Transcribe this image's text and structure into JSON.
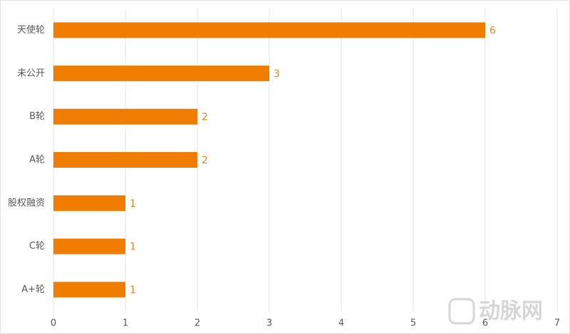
{
  "chart_data": {
    "type": "barh",
    "categories": [
      "天使轮",
      "未公开",
      "B轮",
      "A轮",
      "股权融资",
      "C轮",
      "A+轮"
    ],
    "values": [
      6,
      3,
      2,
      2,
      1,
      1,
      1
    ],
    "color": "#f07c00",
    "xlim": [
      0,
      7
    ],
    "xticks": [
      0,
      1,
      2,
      3,
      4,
      5,
      6,
      7
    ],
    "grid": true
  },
  "watermark": "动脉网"
}
